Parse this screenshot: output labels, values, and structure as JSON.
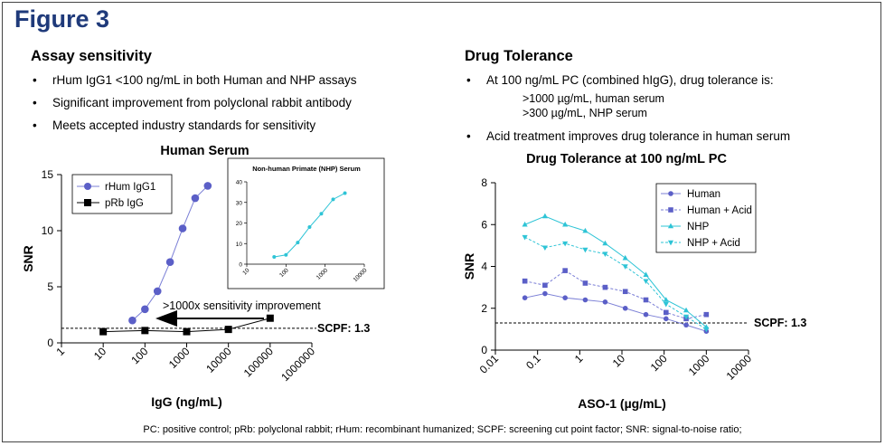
{
  "figure_title": "Figure 3",
  "left": {
    "title": "Assay sensitivity",
    "bullets": [
      "rHum IgG1 <100 ng/mL in both Human and NHP assays",
      "Significant improvement from polyclonal rabbit antibody",
      "Meets accepted industry standards for sensitivity"
    ]
  },
  "right": {
    "title": "Drug Tolerance",
    "bullets": [
      "At 100 ng/mL PC (combined hIgG), drug tolerance is:",
      "Acid treatment improves drug tolerance in human serum"
    ],
    "sub_lines": [
      ">1000 µg/mL, human serum",
      ">300 µg/mL, NHP serum"
    ]
  },
  "footnote": "PC: positive control; pRb: polyclonal rabbit; rHum: recombinant humanized; SCPF: screening cut point factor; SNR: signal-to-noise ratio;",
  "colors": {
    "title_blue": "#1f3a7a",
    "rhum": "#5b5fc7",
    "prb": "#000000",
    "human": "#5b5fc7",
    "nhp": "#2ec4d6",
    "inset": "#2ec4d6"
  },
  "chart_data": [
    {
      "type": "scatter",
      "title": "Human Serum",
      "xlabel": "IgG (ng/mL)",
      "ylabel": "SNR",
      "x_scale": "log",
      "xlim": [
        1,
        1000000
      ],
      "ylim": [
        0,
        15
      ],
      "x_ticks": [
        "1",
        "10",
        "100",
        "1000",
        "10000",
        "100000",
        "1000000"
      ],
      "y_ticks": [
        "0",
        "5",
        "10",
        "15"
      ],
      "legend_position": "top-left",
      "series": [
        {
          "name": "rHum IgG1",
          "marker": "circle",
          "x": [
            50,
            100,
            200,
            400,
            800,
            1600,
            3200
          ],
          "y": [
            2.0,
            3.0,
            4.6,
            7.2,
            10.2,
            12.9,
            14.0
          ]
        },
        {
          "name": "pRb IgG",
          "marker": "square",
          "x": [
            10,
            100,
            1000,
            10000,
            100000
          ],
          "y": [
            1.0,
            1.1,
            1.0,
            1.2,
            2.2
          ]
        }
      ],
      "threshold": {
        "label": "SCPF: 1.3",
        "value": 1.3
      },
      "annotation": ">1000x sensitivity improvement"
    },
    {
      "type": "line",
      "title": "Non-human Primate (NHP) Serum",
      "x_scale": "log",
      "xlim": [
        10,
        10000
      ],
      "ylim": [
        0,
        40
      ],
      "x_ticks": [
        "10",
        "100",
        "1000",
        "10000"
      ],
      "y_ticks": [
        "0",
        "10",
        "20",
        "30",
        "40"
      ],
      "series": [
        {
          "x": [
            50,
            100,
            200,
            400,
            800,
            1600,
            3200
          ],
          "y": [
            3.5,
            4.5,
            10.5,
            18,
            24.5,
            31.5,
            34.5
          ]
        }
      ]
    },
    {
      "type": "line",
      "title": "Drug Tolerance at 100 ng/mL PC",
      "xlabel": "ASO-1 (µg/mL)",
      "ylabel": "SNR",
      "x_scale": "log",
      "xlim": [
        0.01,
        10000
      ],
      "ylim": [
        0,
        8
      ],
      "x_ticks": [
        "0.01",
        "0.1",
        "1",
        "10",
        "100",
        "1000",
        "10000"
      ],
      "y_ticks": [
        "0",
        "2",
        "4",
        "6",
        "8"
      ],
      "legend_position": "top-right",
      "threshold": {
        "label": "SCPF: 1.3",
        "value": 1.3
      },
      "x": [
        0.05,
        0.15,
        0.45,
        1.35,
        4,
        12,
        37,
        111,
        333,
        1000
      ],
      "series": [
        {
          "name": "Human",
          "marker": "circle",
          "dash": false,
          "color": "#5b5fc7",
          "values": [
            2.5,
            2.7,
            2.5,
            2.4,
            2.3,
            2.0,
            1.7,
            1.5,
            1.2,
            0.9
          ]
        },
        {
          "name": "Human + Acid",
          "marker": "square",
          "dash": true,
          "color": "#5b5fc7",
          "values": [
            3.3,
            3.1,
            3.8,
            3.2,
            3.0,
            2.8,
            2.4,
            1.8,
            1.5,
            1.7
          ]
        },
        {
          "name": "NHP",
          "marker": "triangle-up",
          "dash": false,
          "color": "#2ec4d6",
          "values": [
            6.0,
            6.4,
            6.0,
            5.7,
            5.1,
            4.4,
            3.6,
            2.4,
            1.9,
            1.1
          ]
        },
        {
          "name": "NHP + Acid",
          "marker": "triangle-down",
          "dash": true,
          "color": "#2ec4d6",
          "values": [
            5.4,
            4.9,
            5.1,
            4.8,
            4.6,
            4.0,
            3.3,
            2.2,
            1.6,
            1.0
          ]
        }
      ]
    }
  ]
}
